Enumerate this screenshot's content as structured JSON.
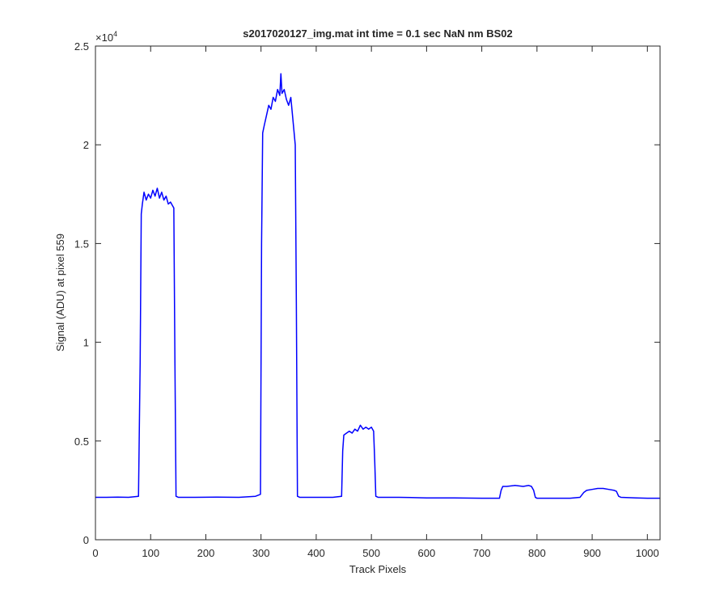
{
  "chart_data": {
    "type": "line",
    "title": "s2017020127_img.mat int time = 0.1 sec  NaN nm BS02",
    "x_label": "Track Pixels",
    "y_label": "Signal (ADU) at pixel 559",
    "y_scale_label": "×10",
    "y_scale_exponent": "4",
    "xlim": [
      0,
      1023
    ],
    "ylim": [
      0,
      25000
    ],
    "xticks": [
      0,
      100,
      200,
      300,
      400,
      500,
      600,
      700,
      800,
      900,
      1000
    ],
    "yticks": [
      0,
      {
        "value": 5000,
        "label": "0.5"
      },
      {
        "value": 10000,
        "label": "1"
      },
      {
        "value": 15000,
        "label": "1.5"
      },
      {
        "value": 20000,
        "label": "2"
      },
      {
        "value": 25000,
        "label": "2.5"
      }
    ],
    "grid": false,
    "series": [
      {
        "name": "Signal",
        "color": "#0000ff",
        "x": [
          0,
          20,
          40,
          60,
          78,
          81,
          83,
          85,
          88,
          92,
          96,
          100,
          104,
          108,
          112,
          116,
          120,
          124,
          128,
          132,
          136,
          140,
          142,
          144,
          146,
          150,
          180,
          220,
          260,
          290,
          299,
          301,
          303,
          306,
          310,
          314,
          318,
          322,
          326,
          330,
          334,
          336,
          338,
          342,
          346,
          350,
          354,
          358,
          362,
          364,
          366,
          370,
          400,
          430,
          446,
          448,
          450,
          455,
          460,
          465,
          470,
          475,
          480,
          485,
          490,
          495,
          500,
          504,
          506,
          508,
          512,
          550,
          600,
          650,
          700,
          732,
          735,
          738,
          745,
          760,
          775,
          785,
          790,
          794,
          797,
          800,
          830,
          860,
          878,
          885,
          890,
          900,
          910,
          920,
          930,
          940,
          944,
          948,
          952,
          980,
          1000,
          1023
        ],
        "values": [
          2150,
          2150,
          2160,
          2150,
          2200,
          9000,
          16500,
          17000,
          17600,
          17200,
          17500,
          17300,
          17700,
          17400,
          17800,
          17300,
          17600,
          17200,
          17400,
          17000,
          17100,
          16900,
          16800,
          9000,
          2200,
          2150,
          2150,
          2160,
          2150,
          2200,
          2300,
          15000,
          20600,
          21000,
          21500,
          22000,
          21800,
          22400,
          22200,
          22800,
          22500,
          23600,
          22600,
          22800,
          22300,
          22000,
          22400,
          21200,
          20000,
          12000,
          2200,
          2150,
          2150,
          2150,
          2200,
          4500,
          5300,
          5400,
          5500,
          5400,
          5600,
          5500,
          5800,
          5600,
          5700,
          5600,
          5700,
          5500,
          4000,
          2200,
          2150,
          2150,
          2120,
          2120,
          2100,
          2100,
          2500,
          2700,
          2700,
          2750,
          2700,
          2750,
          2700,
          2500,
          2150,
          2100,
          2100,
          2100,
          2150,
          2400,
          2500,
          2550,
          2600,
          2600,
          2550,
          2500,
          2450,
          2200,
          2150,
          2120,
          2100,
          2100
        ]
      }
    ]
  }
}
